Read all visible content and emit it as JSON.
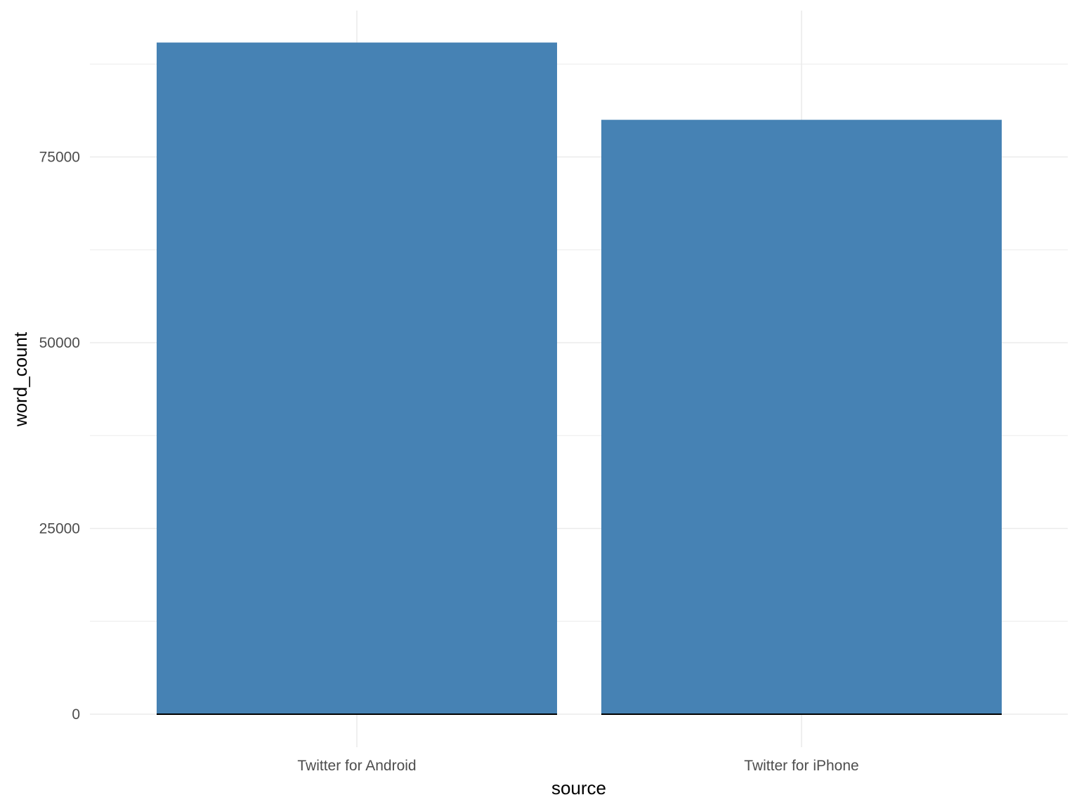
{
  "chart_data": {
    "type": "bar",
    "title": "",
    "xlabel": "source",
    "ylabel": "word_count",
    "categories": [
      "Twitter for Android",
      "Twitter for iPhone"
    ],
    "values": [
      90400,
      80000
    ],
    "ylim": [
      0,
      92000
    ],
    "yticks": [
      0,
      25000,
      50000,
      75000
    ],
    "y_tick_labels": [
      "0",
      "25000",
      "50000",
      "75000"
    ],
    "grid": true,
    "legend": "none",
    "colors": {
      "bar": "#4682b4",
      "grid": "#ebebeb",
      "baseline": "#000000"
    }
  }
}
